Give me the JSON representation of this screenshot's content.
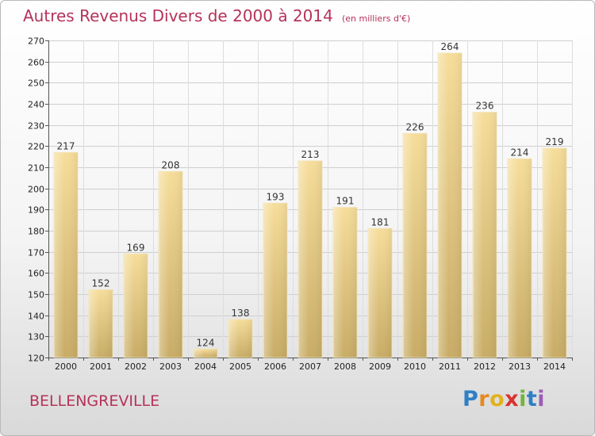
{
  "header": {
    "title": "Autres Revenus Divers de 2000 à 2014",
    "subtitle": "(en milliers d'€)"
  },
  "footer": {
    "commune": "BELLENGREVILLE",
    "logo_text": "Proxiti"
  },
  "colors": {
    "title": "#b5325a",
    "bar_light": "#f5dc98",
    "bar_dark": "#c9ae68",
    "grid": "#c8c8c8"
  },
  "chart_data": {
    "type": "bar",
    "title": "Autres Revenus Divers de 2000 à 2014",
    "subtitle": "(en milliers d'€)",
    "categories": [
      "2000",
      "2001",
      "2002",
      "2003",
      "2004",
      "2005",
      "2006",
      "2007",
      "2008",
      "2009",
      "2010",
      "2011",
      "2012",
      "2013",
      "2014"
    ],
    "values": [
      217,
      152,
      169,
      208,
      124,
      138,
      193,
      213,
      191,
      181,
      226,
      264,
      236,
      214,
      219
    ],
    "ylim": [
      120,
      270
    ],
    "ytick_step": 10,
    "grid": true,
    "data_labels": true
  }
}
